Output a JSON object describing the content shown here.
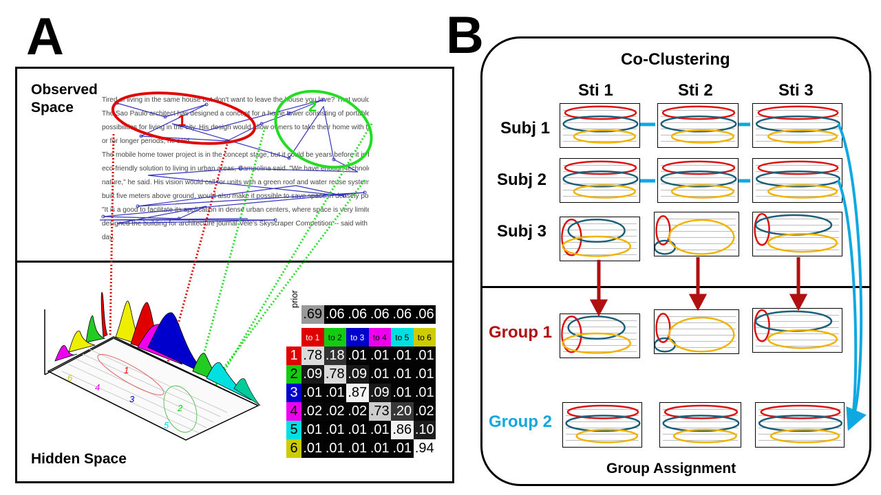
{
  "panel_a": {
    "letter": "A",
    "observed_label": "Observed Space",
    "observed_line1": "Observed",
    "observed_line2": "Space",
    "hidden_label": "Hidden Space",
    "region_labels": [
      "1",
      "2"
    ],
    "hidden_region_labels": [
      "1",
      "2",
      "3",
      "4",
      "5",
      "6"
    ],
    "text_lines": [
      "Tired of living in the same house but don't want to leave the house you love? That wouldn't be a problem if architect Rene Campolina had his way.",
      "The Sao Paulo architect has designed a concept for a home tower consisting of portable, stackable apartment units, which he says opens up new",
      "possibilities for living in the city. His design would allow owners to take their home with them when they travel - even for a weekend away",
      "or for longer periods, he said.",
      "The mobile home tower project is in the concept stage, but it could be years before it is built, if ever at all. But if it is realized, it would offer an",
      "eco-friendly solution to living in urban areas, Campolina said. \"We have enough technology to build with fewer materials and minimize the impact on",
      "nature,\" he said. His vision would call for units with a green roof and water reuse system for recycling water. The tower - some of which would be",
      "built five meters above ground, would also make it possible to save space in densely populated areas.",
      "\"It is a good to facilitate its application in dense urban centers, where space is very limited,\" he said. Still just a concept, Campolina -- who",
      "designed the building for architecture journal Vele's Skyscraper Competition -- said with enough public interest, it just might become a reality one",
      "day."
    ],
    "matrix": {
      "prior_label": "prior",
      "prior": [
        ".69",
        ".06",
        ".06",
        ".06",
        ".06",
        ".06"
      ],
      "col_headers": [
        "to 1",
        "to 2",
        "to 3",
        "to 4",
        "to 5",
        "to 6"
      ],
      "row_headers": [
        "1",
        "2",
        "3",
        "4",
        "5",
        "6"
      ],
      "rows": [
        [
          ".78",
          ".18",
          ".01",
          ".01",
          ".01",
          ".01"
        ],
        [
          ".09",
          ".78",
          ".09",
          ".01",
          ".01",
          ".01"
        ],
        [
          ".01",
          ".01",
          ".87",
          ".09",
          ".01",
          ".01"
        ],
        [
          ".02",
          ".02",
          ".02",
          ".73",
          ".20",
          ".02"
        ],
        [
          ".01",
          ".01",
          ".01",
          ".01",
          ".86",
          ".10"
        ],
        [
          ".01",
          ".01",
          ".01",
          ".01",
          ".01",
          ".94"
        ]
      ],
      "state_colors": [
        "#e00000",
        "#11cc11",
        "#0000cc",
        "#ee00ee",
        "#00e0e0",
        "#cccc00"
      ]
    }
  },
  "panel_b": {
    "letter": "B",
    "title": "Co-Clustering",
    "stimuli": [
      "Sti 1",
      "Sti 2",
      "Sti 3"
    ],
    "subjects": [
      "Subj 1",
      "Subj 2",
      "Subj 3"
    ],
    "groups": [
      "Group 1",
      "Group 2"
    ],
    "group_colors": [
      "#b01010",
      "#10a8e0"
    ],
    "footer": "Group Assignment"
  }
}
